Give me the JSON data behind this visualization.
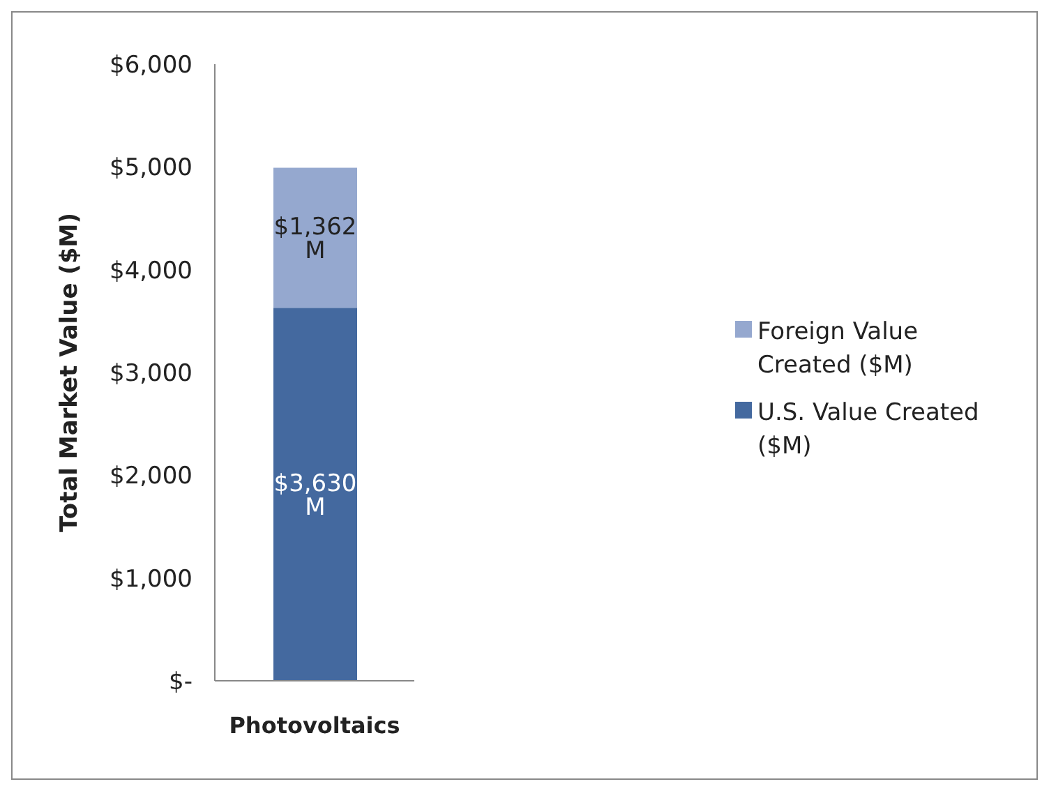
{
  "chart_data": {
    "type": "bar",
    "stacked": true,
    "categories": [
      "Photovoltaics"
    ],
    "ylabel": "Total Market Value ($M)",
    "ylim": [
      0,
      6000
    ],
    "yticks": [
      {
        "value": 0,
        "label": "$-"
      },
      {
        "value": 1000,
        "label": "$1,000"
      },
      {
        "value": 2000,
        "label": "$2,000"
      },
      {
        "value": 3000,
        "label": "$3,000"
      },
      {
        "value": 4000,
        "label": "$4,000"
      },
      {
        "value": 5000,
        "label": "$5,000"
      },
      {
        "value": 6000,
        "label": "$6,000"
      }
    ],
    "grid": false,
    "legend": "right",
    "series": [
      {
        "name": "U.S. Value Created ($M)",
        "color": "#44699f",
        "values": [
          3630
        ],
        "value_labels": [
          "$3,630 M"
        ]
      },
      {
        "name": "Foreign Value Created ($M)",
        "color": "#95a8cf",
        "values": [
          1362
        ],
        "value_labels": [
          "$1,362 M"
        ]
      }
    ]
  }
}
